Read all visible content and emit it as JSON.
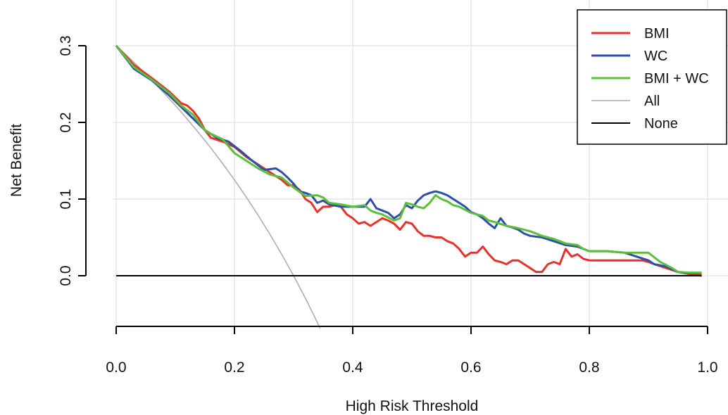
{
  "chart_data": {
    "type": "line",
    "title": "",
    "xlabel": "High Risk Threshold",
    "ylabel": "Net Benefit",
    "xlim": [
      0,
      1.0
    ],
    "ylim": [
      -0.065,
      0.335
    ],
    "x_ticks": [
      0.0,
      0.2,
      0.4,
      0.6,
      0.8,
      1.0
    ],
    "x_tick_labels": [
      "0.0",
      "0.2",
      "0.4",
      "0.6",
      "0.8",
      "1.0"
    ],
    "y_ticks": [
      0.0,
      0.1,
      0.2,
      0.3
    ],
    "y_tick_labels": [
      "0.0",
      "0.1",
      "0.2",
      "0.3"
    ],
    "grid": true,
    "legend_position": "top-right",
    "series": [
      {
        "name": "BMI",
        "color": "#e8312a",
        "points": [
          [
            0.0,
            0.3
          ],
          [
            0.03,
            0.275
          ],
          [
            0.06,
            0.258
          ],
          [
            0.09,
            0.24
          ],
          [
            0.11,
            0.225
          ],
          [
            0.12,
            0.222
          ],
          [
            0.13,
            0.215
          ],
          [
            0.14,
            0.205
          ],
          [
            0.15,
            0.19
          ],
          [
            0.16,
            0.18
          ],
          [
            0.18,
            0.175
          ],
          [
            0.2,
            0.168
          ],
          [
            0.22,
            0.155
          ],
          [
            0.24,
            0.145
          ],
          [
            0.26,
            0.135
          ],
          [
            0.28,
            0.125
          ],
          [
            0.29,
            0.118
          ],
          [
            0.3,
            0.118
          ],
          [
            0.31,
            0.112
          ],
          [
            0.32,
            0.1
          ],
          [
            0.33,
            0.095
          ],
          [
            0.34,
            0.083
          ],
          [
            0.35,
            0.09
          ],
          [
            0.36,
            0.09
          ],
          [
            0.37,
            0.092
          ],
          [
            0.38,
            0.09
          ],
          [
            0.39,
            0.08
          ],
          [
            0.4,
            0.075
          ],
          [
            0.41,
            0.068
          ],
          [
            0.42,
            0.07
          ],
          [
            0.43,
            0.065
          ],
          [
            0.44,
            0.07
          ],
          [
            0.45,
            0.075
          ],
          [
            0.46,
            0.072
          ],
          [
            0.47,
            0.068
          ],
          [
            0.48,
            0.06
          ],
          [
            0.49,
            0.07
          ],
          [
            0.5,
            0.068
          ],
          [
            0.51,
            0.058
          ],
          [
            0.52,
            0.052
          ],
          [
            0.53,
            0.052
          ],
          [
            0.54,
            0.05
          ],
          [
            0.55,
            0.05
          ],
          [
            0.56,
            0.045
          ],
          [
            0.57,
            0.042
          ],
          [
            0.58,
            0.035
          ],
          [
            0.59,
            0.025
          ],
          [
            0.6,
            0.03
          ],
          [
            0.61,
            0.03
          ],
          [
            0.62,
            0.038
          ],
          [
            0.63,
            0.028
          ],
          [
            0.64,
            0.02
          ],
          [
            0.65,
            0.018
          ],
          [
            0.66,
            0.015
          ],
          [
            0.67,
            0.02
          ],
          [
            0.68,
            0.02
          ],
          [
            0.69,
            0.015
          ],
          [
            0.7,
            0.01
          ],
          [
            0.71,
            0.005
          ],
          [
            0.72,
            0.005
          ],
          [
            0.73,
            0.015
          ],
          [
            0.74,
            0.018
          ],
          [
            0.75,
            0.015
          ],
          [
            0.76,
            0.035
          ],
          [
            0.77,
            0.025
          ],
          [
            0.78,
            0.028
          ],
          [
            0.79,
            0.022
          ],
          [
            0.8,
            0.02
          ],
          [
            0.83,
            0.02
          ],
          [
            0.86,
            0.02
          ],
          [
            0.89,
            0.02
          ],
          [
            0.9,
            0.018
          ],
          [
            0.91,
            0.015
          ],
          [
            0.93,
            0.01
          ],
          [
            0.95,
            0.005
          ],
          [
            0.97,
            0.002
          ],
          [
            0.99,
            0.0
          ]
        ]
      },
      {
        "name": "WC",
        "color": "#2e4fa8",
        "points": [
          [
            0.0,
            0.3
          ],
          [
            0.03,
            0.27
          ],
          [
            0.06,
            0.255
          ],
          [
            0.09,
            0.235
          ],
          [
            0.11,
            0.22
          ],
          [
            0.13,
            0.205
          ],
          [
            0.15,
            0.19
          ],
          [
            0.17,
            0.18
          ],
          [
            0.19,
            0.175
          ],
          [
            0.21,
            0.163
          ],
          [
            0.23,
            0.15
          ],
          [
            0.25,
            0.138
          ],
          [
            0.27,
            0.14
          ],
          [
            0.28,
            0.135
          ],
          [
            0.29,
            0.128
          ],
          [
            0.3,
            0.12
          ],
          [
            0.31,
            0.11
          ],
          [
            0.32,
            0.108
          ],
          [
            0.33,
            0.105
          ],
          [
            0.34,
            0.095
          ],
          [
            0.35,
            0.098
          ],
          [
            0.36,
            0.093
          ],
          [
            0.38,
            0.09
          ],
          [
            0.4,
            0.09
          ],
          [
            0.42,
            0.09
          ],
          [
            0.43,
            0.1
          ],
          [
            0.44,
            0.088
          ],
          [
            0.45,
            0.085
          ],
          [
            0.46,
            0.082
          ],
          [
            0.47,
            0.075
          ],
          [
            0.48,
            0.08
          ],
          [
            0.49,
            0.092
          ],
          [
            0.5,
            0.088
          ],
          [
            0.51,
            0.098
          ],
          [
            0.52,
            0.105
          ],
          [
            0.53,
            0.108
          ],
          [
            0.54,
            0.11
          ],
          [
            0.55,
            0.108
          ],
          [
            0.56,
            0.105
          ],
          [
            0.57,
            0.1
          ],
          [
            0.58,
            0.095
          ],
          [
            0.59,
            0.09
          ],
          [
            0.6,
            0.083
          ],
          [
            0.61,
            0.08
          ],
          [
            0.62,
            0.075
          ],
          [
            0.63,
            0.068
          ],
          [
            0.64,
            0.062
          ],
          [
            0.65,
            0.075
          ],
          [
            0.66,
            0.065
          ],
          [
            0.67,
            0.063
          ],
          [
            0.68,
            0.06
          ],
          [
            0.69,
            0.055
          ],
          [
            0.7,
            0.052
          ],
          [
            0.72,
            0.05
          ],
          [
            0.74,
            0.045
          ],
          [
            0.76,
            0.04
          ],
          [
            0.78,
            0.038
          ],
          [
            0.79,
            0.035
          ],
          [
            0.8,
            0.032
          ],
          [
            0.83,
            0.032
          ],
          [
            0.86,
            0.03
          ],
          [
            0.88,
            0.025
          ],
          [
            0.9,
            0.02
          ],
          [
            0.91,
            0.015
          ],
          [
            0.93,
            0.012
          ],
          [
            0.95,
            0.005
          ],
          [
            0.97,
            0.003
          ],
          [
            0.99,
            0.003
          ]
        ]
      },
      {
        "name": "BMI + WC",
        "color": "#5cbf3c",
        "points": [
          [
            0.0,
            0.3
          ],
          [
            0.03,
            0.272
          ],
          [
            0.06,
            0.256
          ],
          [
            0.09,
            0.238
          ],
          [
            0.11,
            0.222
          ],
          [
            0.13,
            0.21
          ],
          [
            0.15,
            0.19
          ],
          [
            0.16,
            0.185
          ],
          [
            0.18,
            0.178
          ],
          [
            0.2,
            0.16
          ],
          [
            0.22,
            0.15
          ],
          [
            0.24,
            0.14
          ],
          [
            0.26,
            0.132
          ],
          [
            0.28,
            0.128
          ],
          [
            0.3,
            0.115
          ],
          [
            0.32,
            0.104
          ],
          [
            0.34,
            0.105
          ],
          [
            0.35,
            0.102
          ],
          [
            0.36,
            0.095
          ],
          [
            0.38,
            0.093
          ],
          [
            0.4,
            0.09
          ],
          [
            0.42,
            0.092
          ],
          [
            0.43,
            0.085
          ],
          [
            0.44,
            0.082
          ],
          [
            0.45,
            0.08
          ],
          [
            0.46,
            0.076
          ],
          [
            0.47,
            0.072
          ],
          [
            0.48,
            0.075
          ],
          [
            0.49,
            0.095
          ],
          [
            0.5,
            0.093
          ],
          [
            0.51,
            0.09
          ],
          [
            0.52,
            0.088
          ],
          [
            0.53,
            0.095
          ],
          [
            0.54,
            0.105
          ],
          [
            0.55,
            0.1
          ],
          [
            0.56,
            0.097
          ],
          [
            0.57,
            0.092
          ],
          [
            0.58,
            0.09
          ],
          [
            0.6,
            0.082
          ],
          [
            0.62,
            0.078
          ],
          [
            0.63,
            0.072
          ],
          [
            0.64,
            0.07
          ],
          [
            0.66,
            0.065
          ],
          [
            0.68,
            0.062
          ],
          [
            0.7,
            0.058
          ],
          [
            0.72,
            0.052
          ],
          [
            0.74,
            0.048
          ],
          [
            0.76,
            0.042
          ],
          [
            0.78,
            0.04
          ],
          [
            0.79,
            0.035
          ],
          [
            0.8,
            0.032
          ],
          [
            0.83,
            0.032
          ],
          [
            0.86,
            0.03
          ],
          [
            0.88,
            0.03
          ],
          [
            0.9,
            0.03
          ],
          [
            0.92,
            0.018
          ],
          [
            0.94,
            0.01
          ],
          [
            0.95,
            0.005
          ],
          [
            0.97,
            0.004
          ],
          [
            0.99,
            0.004
          ]
        ]
      },
      {
        "name": "All",
        "color": "#aaaaaa",
        "points": [
          [
            0.0,
            0.3
          ],
          [
            0.02,
            0.2857
          ],
          [
            0.04,
            0.2708
          ],
          [
            0.06,
            0.2553
          ],
          [
            0.08,
            0.2391
          ],
          [
            0.1,
            0.2222
          ],
          [
            0.12,
            0.2045
          ],
          [
            0.14,
            0.186
          ],
          [
            0.16,
            0.1667
          ],
          [
            0.18,
            0.1463
          ],
          [
            0.2,
            0.125
          ],
          [
            0.22,
            0.1026
          ],
          [
            0.24,
            0.0789
          ],
          [
            0.26,
            0.0541
          ],
          [
            0.28,
            0.0278
          ],
          [
            0.3,
            0.0
          ],
          [
            0.32,
            -0.0294
          ],
          [
            0.34,
            -0.0606
          ],
          [
            0.345,
            -0.0687
          ]
        ]
      },
      {
        "name": "None",
        "color": "#000000",
        "points": [
          [
            0.0,
            0.0
          ],
          [
            0.99,
            0.0
          ]
        ]
      }
    ]
  }
}
